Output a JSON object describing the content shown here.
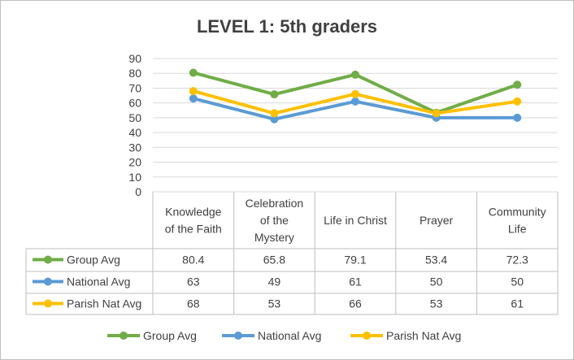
{
  "chart_data": {
    "type": "line",
    "title": "LEVEL 1: 5th graders",
    "categories": [
      [
        "Knowledge",
        "of the Faith"
      ],
      [
        "Celebration",
        "of the",
        "Mystery"
      ],
      [
        "Life in Christ"
      ],
      [
        "Prayer"
      ],
      [
        "Community",
        "Life"
      ]
    ],
    "yticks": [
      "0",
      "10",
      "20",
      "30",
      "40",
      "50",
      "60",
      "70",
      "80",
      "90"
    ],
    "ylim": [
      0,
      90
    ],
    "series": [
      {
        "name": "Group Avg",
        "color": "#70ad47",
        "values": [
          80.4,
          65.8,
          79.1,
          53.4,
          72.3
        ],
        "labels": [
          "80.4",
          "65.8",
          "79.1",
          "53.4",
          "72.3"
        ]
      },
      {
        "name": "National Avg",
        "color": "#5b9bd5",
        "values": [
          63,
          49,
          61,
          50,
          50
        ],
        "labels": [
          "63",
          "49",
          "61",
          "50",
          "50"
        ]
      },
      {
        "name": "Parish Nat Avg",
        "color": "#ffc000",
        "values": [
          68,
          53,
          66,
          53,
          61
        ],
        "labels": [
          "68",
          "53",
          "66",
          "53",
          "61"
        ]
      }
    ]
  }
}
